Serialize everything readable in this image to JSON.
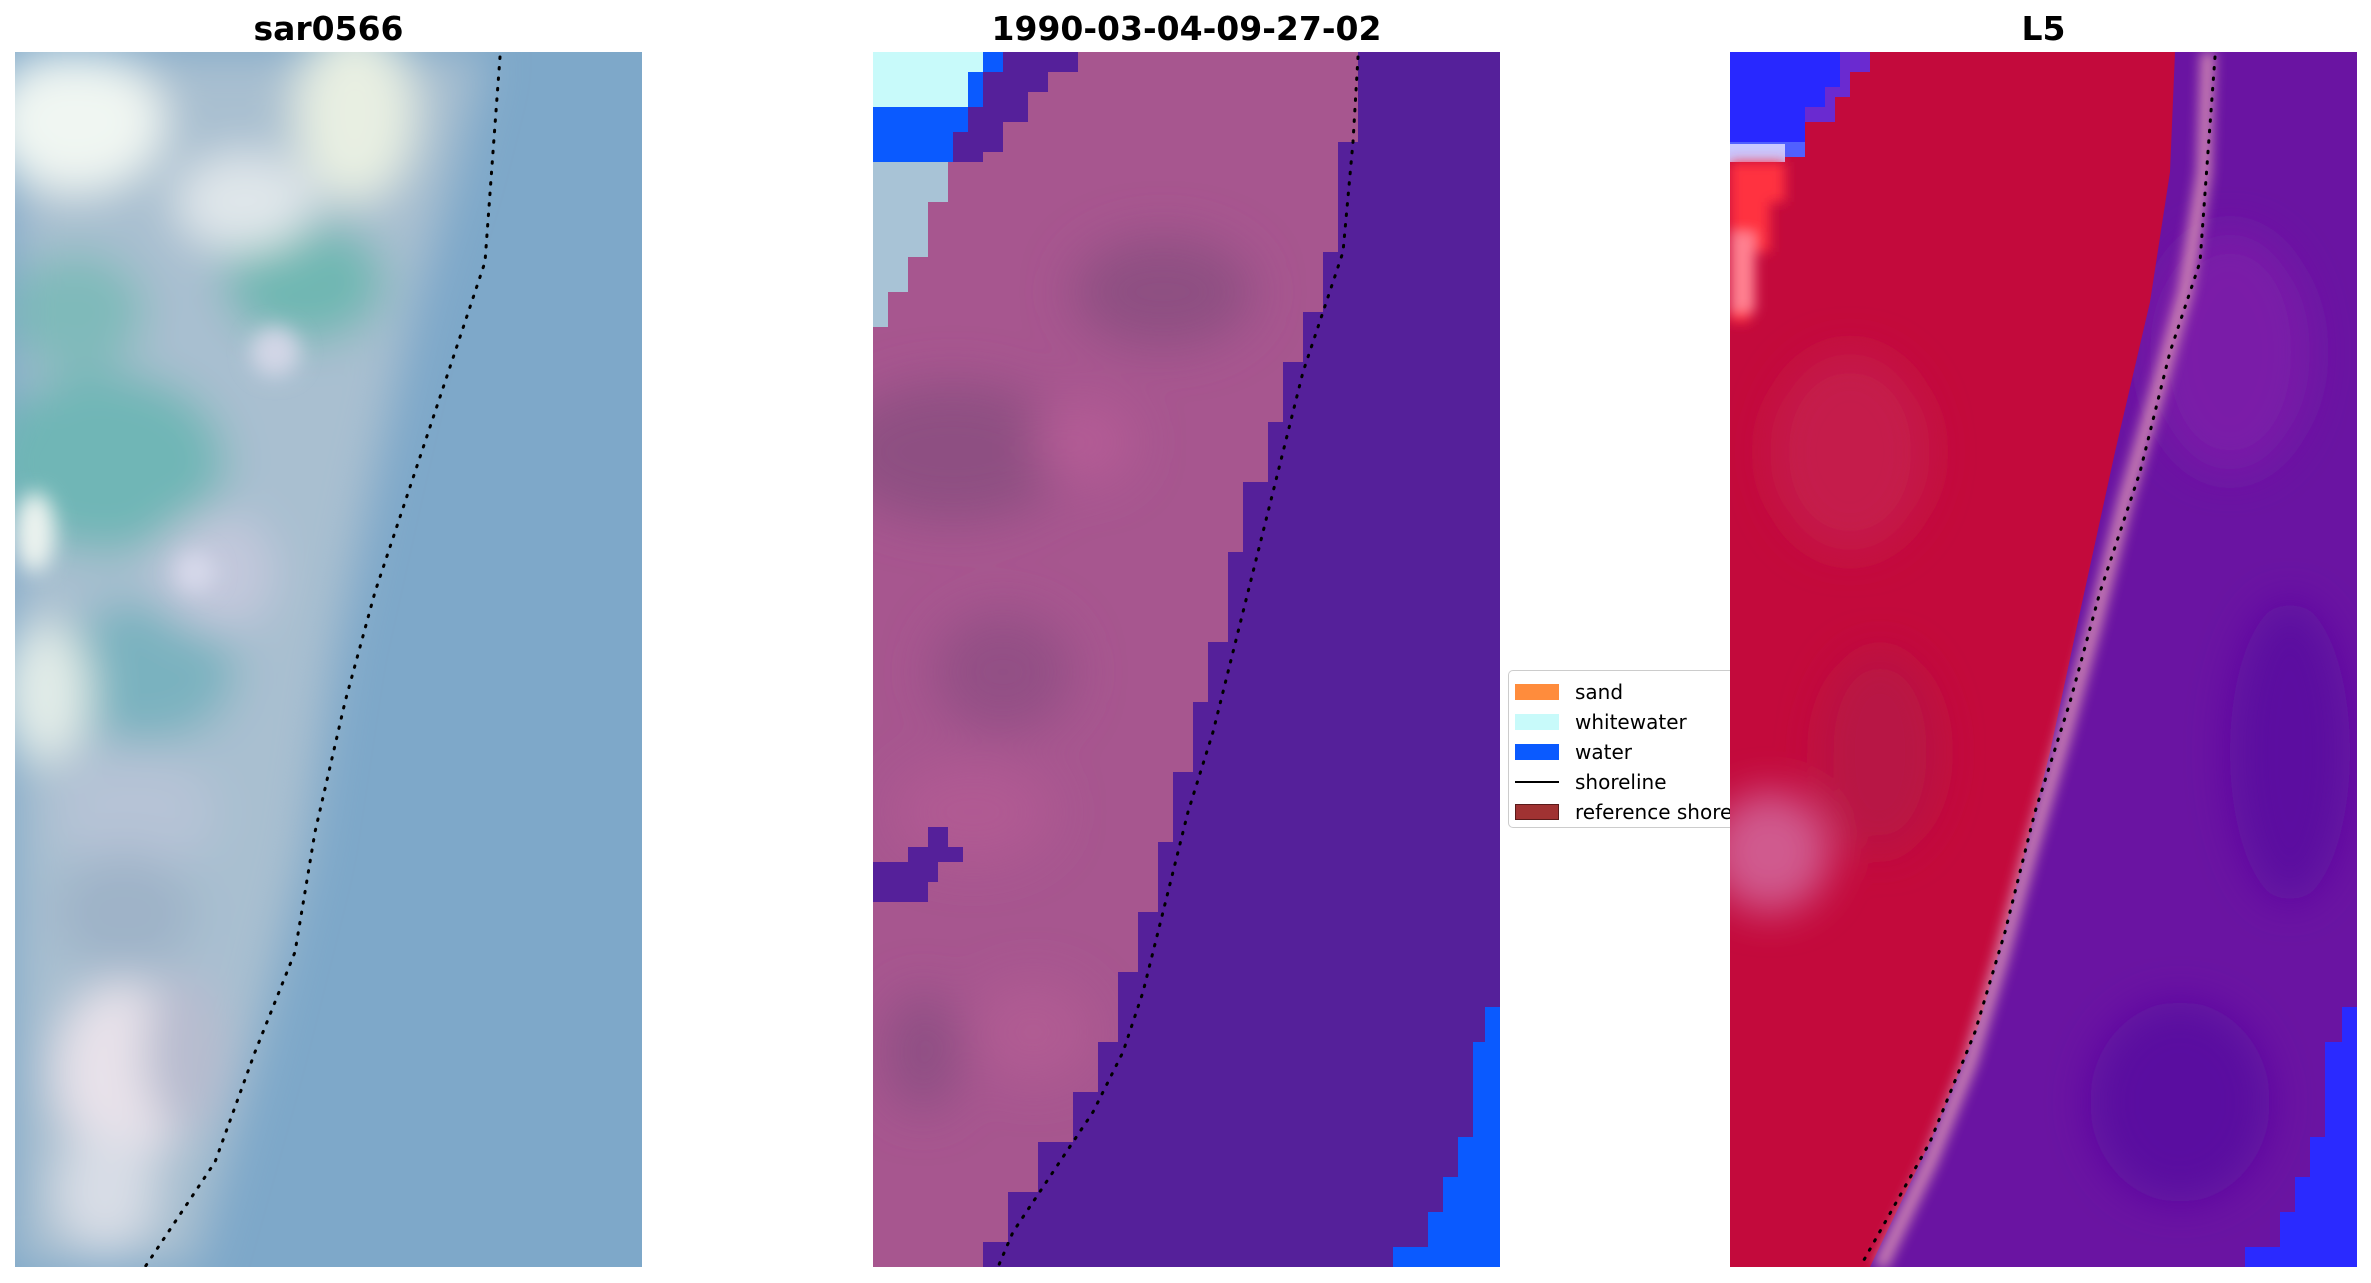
{
  "titles": {
    "panel1": "sar0566",
    "panel2": "1990-03-04-09-27-02",
    "panel3": "L5"
  },
  "legend": {
    "items": [
      {
        "label": "sand",
        "color": "#ff8c3c",
        "kind": "patch"
      },
      {
        "label": "whitewater",
        "color": "#c8fafa",
        "kind": "patch"
      },
      {
        "label": "water",
        "color": "#0a5aff",
        "kind": "patch"
      },
      {
        "label": "shoreline",
        "color": "#000000",
        "kind": "line"
      },
      {
        "label": "reference shoreline",
        "color": "#a03232",
        "kind": "patch-outline"
      }
    ]
  },
  "colors": {
    "rgb_water": "#79a5c8",
    "rgb_land_green": "#6fb4b4",
    "rgb_light": "#e8f2f0",
    "class_land": "#a7568f",
    "class_land_dark": "#8e4f82",
    "class_water": "#55209a",
    "class_water_blue": "#0a5aff",
    "class_whitewater": "#c8fafa",
    "mndwi_land": "#c30a3c",
    "mndwi_water": "#6414a0",
    "mndwi_blue": "#2828ff"
  }
}
